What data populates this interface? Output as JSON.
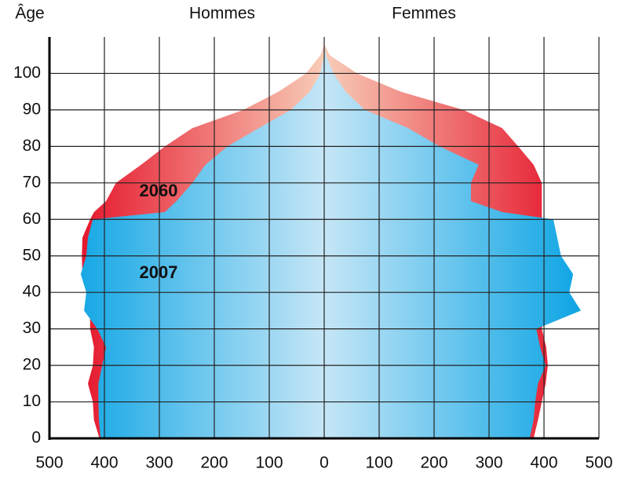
{
  "chart_data": {
    "type": "pyramid",
    "y_label": "Âge",
    "left_label": "Hommes",
    "right_label": "Femmes",
    "ages": [
      0,
      5,
      10,
      15,
      20,
      25,
      30,
      35,
      40,
      45,
      50,
      55,
      60,
      62,
      65,
      70,
      75,
      80,
      85,
      90,
      95,
      100,
      105,
      108
    ],
    "series": [
      {
        "name": "2060",
        "color": "#e3001b",
        "hommes": [
          409,
          419,
          421,
          430,
          421,
          419,
          426,
          426,
          433,
          440,
          441,
          440,
          426,
          419,
          397,
          379,
          333,
          290,
          240,
          147,
          83,
          33,
          7,
          0
        ],
        "femmes": [
          381,
          389,
          396,
          403,
          407,
          404,
          396,
          403,
          410,
          417,
          414,
          410,
          396,
          396,
          396,
          396,
          381,
          353,
          324,
          253,
          139,
          60,
          10,
          0
        ]
      },
      {
        "name": "2007",
        "color": "#00a0e3",
        "hommes": [
          407,
          410,
          411,
          411,
          404,
          397,
          413,
          437,
          433,
          443,
          433,
          430,
          421,
          290,
          269,
          240,
          216,
          176,
          119,
          61,
          26,
          7,
          0,
          0
        ],
        "femmes": [
          374,
          381,
          384,
          389,
          403,
          393,
          386,
          467,
          446,
          453,
          431,
          424,
          417,
          324,
          267,
          267,
          281,
          210,
          153,
          74,
          39,
          17,
          3,
          0
        ]
      }
    ],
    "xlim": [
      0,
      500
    ],
    "xticks_left": [
      500,
      400,
      300,
      200,
      100
    ],
    "xticks": [
      0,
      100,
      200,
      300,
      400,
      500
    ],
    "ylim": [
      0,
      110
    ],
    "yticks": [
      0,
      10,
      20,
      30,
      40,
      50,
      60,
      70,
      80,
      90,
      100
    ],
    "grid": true
  }
}
